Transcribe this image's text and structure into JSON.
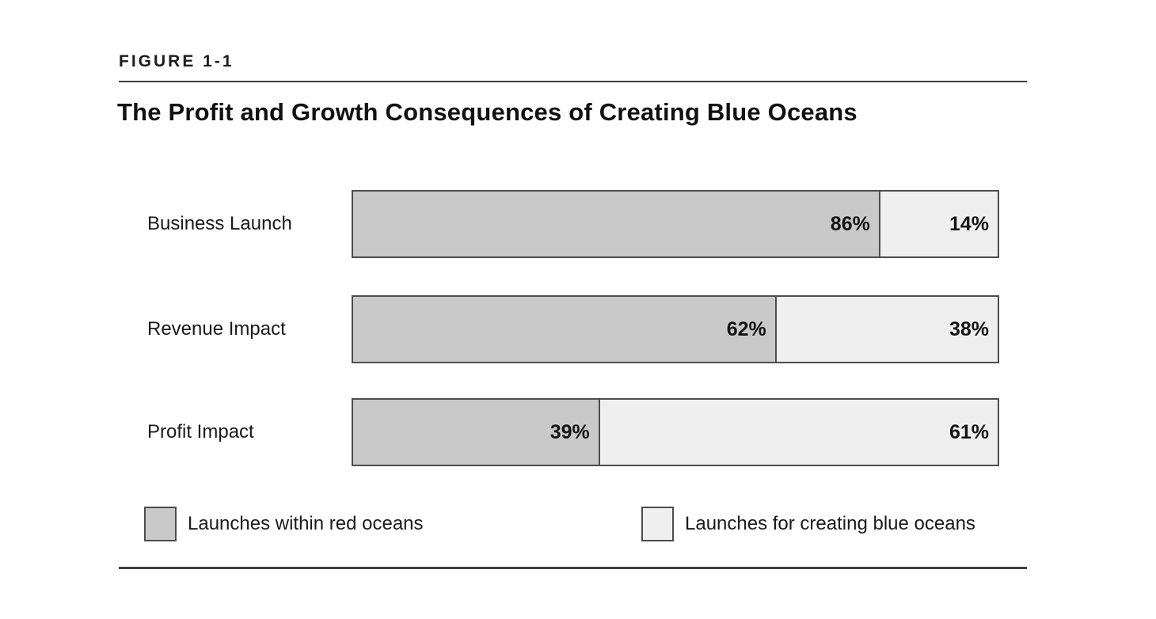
{
  "figure": {
    "label": "FIGURE 1-1",
    "title": "The Profit and Growth Consequences of Creating Blue Oceans"
  },
  "chart_data": {
    "type": "bar",
    "variant": "horizontal-stacked-100-percent",
    "categories": [
      "Business Launch",
      "Revenue Impact",
      "Profit Impact"
    ],
    "series": [
      {
        "name": "Launches within red oceans",
        "color": "#c9c9c9",
        "values": [
          86,
          62,
          39
        ]
      },
      {
        "name": "Launches for creating blue oceans",
        "color": "#efefef",
        "values": [
          14,
          38,
          61
        ]
      }
    ],
    "value_labels": [
      [
        "86%",
        "14%"
      ],
      [
        "62%",
        "38%"
      ],
      [
        "39%",
        "61%"
      ]
    ],
    "unit": "%",
    "grid": false,
    "axes_shown": false,
    "legend_position": "bottom",
    "rendered_left_fractions": [
      0.818,
      0.657,
      0.383
    ]
  },
  "legend": {
    "items": [
      {
        "label": "Launches within red oceans",
        "swatch_color": "#c9c9c9"
      },
      {
        "label": "Launches for creating blue oceans",
        "swatch_color": "#efefef"
      }
    ]
  },
  "colors": {
    "red_ocean_fill": "#c9c9c9",
    "blue_ocean_fill": "#efefef",
    "bar_border": "#4d4d4d",
    "rule": "#3d3d3d",
    "text": "#1a1a1a",
    "background": "#ffffff"
  }
}
